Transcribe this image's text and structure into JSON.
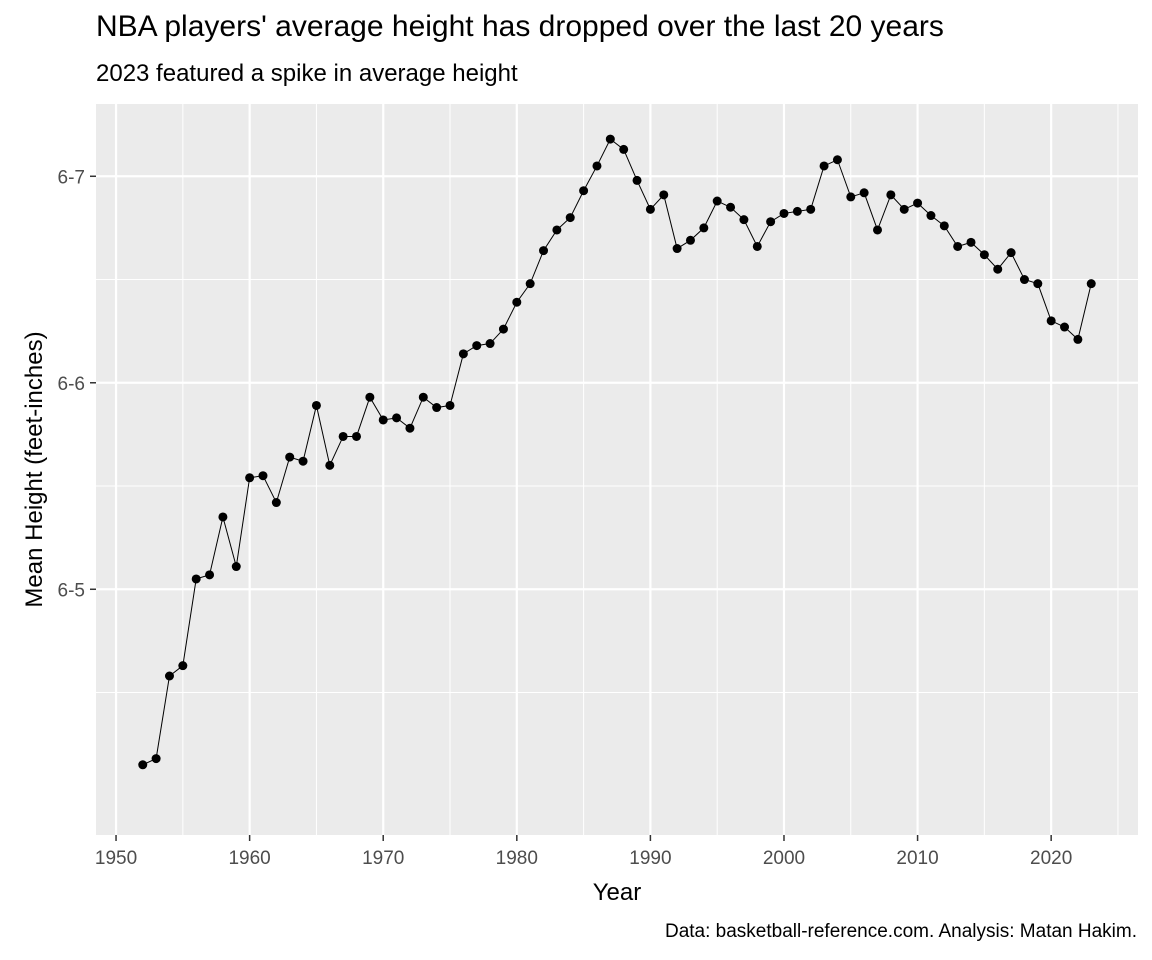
{
  "chart_data": {
    "type": "line",
    "title": "NBA players' average height has dropped over the last 20 years",
    "subtitle": "2023 featured a spike in average height",
    "caption": "Data: basketball-reference.com. Analysis: Matan Hakim.",
    "xlabel": "Year",
    "ylabel": "Mean Height (feet-inches)",
    "xlim": [
      1950.5,
      1952.0
    ],
    "x_ticks": [
      1950,
      1960,
      1970,
      1980,
      1990,
      2000,
      2010,
      2020
    ],
    "y_ticks": [
      {
        "value": 77,
        "label": "6-5"
      },
      {
        "value": 78,
        "label": "6-6"
      },
      {
        "value": 79,
        "label": "6-7"
      }
    ],
    "grid": true,
    "marker": "point",
    "colors": {
      "panel": "#ebebeb",
      "grid": "#ffffff",
      "line": "#000000"
    },
    "series": [
      {
        "x": [
          1952,
          1953,
          1954,
          1955,
          1956,
          1957,
          1958,
          1959,
          1960,
          1961,
          1962,
          1963,
          1964,
          1965,
          1966,
          1967,
          1968,
          1969,
          1970,
          1971,
          1972,
          1973,
          1974,
          1975,
          1976,
          1977,
          1978,
          1979,
          1980,
          1981,
          1982,
          1983,
          1984,
          1985,
          1986,
          1987,
          1988,
          1989,
          1990,
          1991,
          1992,
          1993,
          1994,
          1995,
          1996,
          1997,
          1998,
          1999,
          2000,
          2001,
          2002,
          2003,
          2004,
          2005,
          2006,
          2007,
          2008,
          2009,
          2010,
          2011,
          2012,
          2013,
          2014,
          2015,
          2016,
          2017,
          2018,
          2019,
          2020,
          2021,
          2022,
          2023
        ],
        "values": [
          76.15,
          76.18,
          76.58,
          76.63,
          77.05,
          77.07,
          77.35,
          77.11,
          77.54,
          77.55,
          77.42,
          77.64,
          77.62,
          77.89,
          77.6,
          77.74,
          77.74,
          77.93,
          77.82,
          77.83,
          77.78,
          77.93,
          77.88,
          77.89,
          78.14,
          78.18,
          78.19,
          78.26,
          78.39,
          78.48,
          78.64,
          78.74,
          78.8,
          78.93,
          79.05,
          79.18,
          79.13,
          78.98,
          78.84,
          78.91,
          78.65,
          78.69,
          78.75,
          78.88,
          78.85,
          78.79,
          78.66,
          78.78,
          78.82,
          78.83,
          78.84,
          79.05,
          79.08,
          78.9,
          78.92,
          78.74,
          78.91,
          78.84,
          78.87,
          78.81,
          78.76,
          78.66,
          78.68,
          78.62,
          78.55,
          78.63,
          78.5,
          78.48,
          78.3,
          78.27,
          78.21,
          78.48
        ]
      }
    ]
  }
}
